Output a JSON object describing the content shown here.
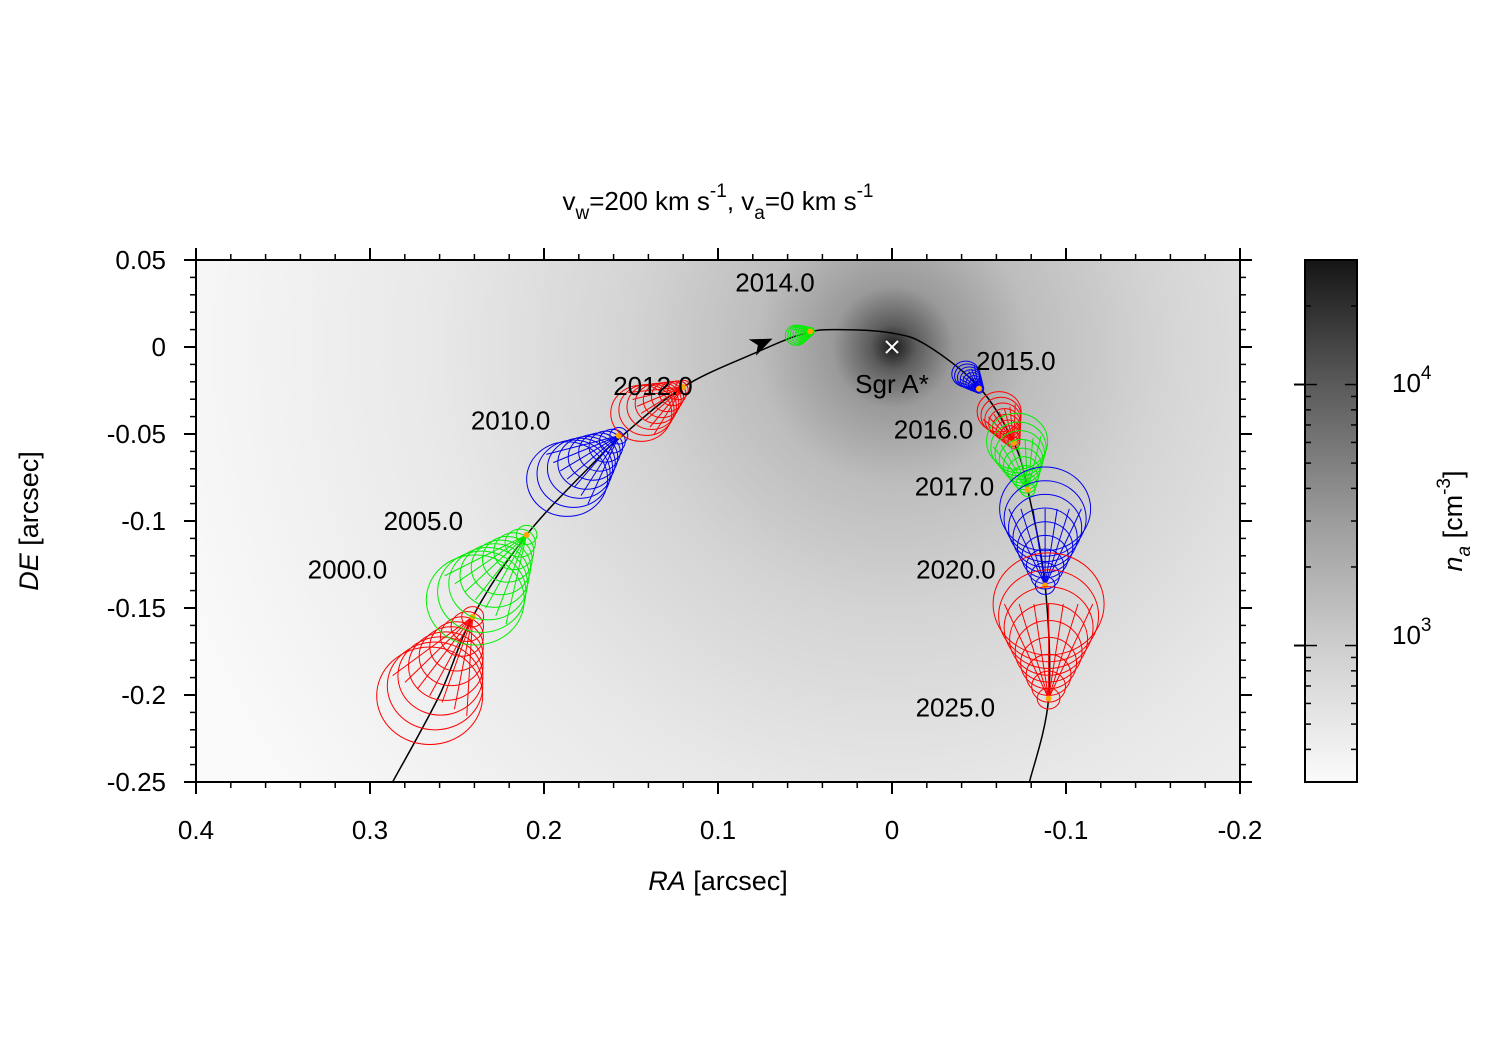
{
  "title": {
    "v": "v",
    "sub_w": "w",
    "eq200": "=200 km s",
    "exp1": "-1",
    "sep": ", v",
    "sub_a": "a",
    "eq0": "=0 km s",
    "exp2": "-1"
  },
  "chart_data": {
    "type": "scatter",
    "xaxis": {
      "label_italic": "RA",
      "label_rest": " [arcsec]",
      "lim": [
        0.4,
        -0.2
      ],
      "ticks": [
        0.4,
        0.3,
        0.2,
        0.1,
        0,
        -0.1,
        -0.2
      ],
      "tick_labels": [
        "0.4",
        "0.3",
        "0.2",
        "0.1",
        "0",
        "-0.1",
        "-0.2"
      ]
    },
    "yaxis": {
      "label_italic": "DE",
      "label_rest": " [arcsec]",
      "lim": [
        -0.25,
        0.05
      ],
      "ticks": [
        0.05,
        0,
        -0.05,
        -0.1,
        -0.15,
        -0.2,
        -0.25
      ],
      "tick_labels": [
        "0.05",
        "0",
        "-0.05",
        "-0.1",
        "-0.15",
        "-0.2",
        "-0.25"
      ]
    },
    "colorbar": {
      "label_italic": "n",
      "label_sub": "a",
      "label_rest": " [cm",
      "label_exp": "-3",
      "label_close": "]",
      "scale": "log",
      "range": [
        300,
        30000
      ],
      "tick_labels": [
        {
          "base": "10",
          "exp": "4",
          "value": 10000
        },
        {
          "base": "10",
          "exp": "3",
          "value": 1000
        }
      ]
    },
    "center": {
      "label": "Sgr A*",
      "x": 0,
      "y": 0
    },
    "orbit": [
      [
        0.287,
        -0.25
      ],
      [
        0.26,
        -0.2
      ],
      [
        0.241,
        -0.155
      ],
      [
        0.21,
        -0.108
      ],
      [
        0.17,
        -0.065
      ],
      [
        0.155,
        -0.051
      ],
      [
        0.12,
        -0.023
      ],
      [
        0.08,
        -0.004
      ],
      [
        0.05,
        0.008
      ],
      [
        0.03,
        0.01
      ],
      [
        0.0,
        0.008
      ],
      [
        -0.02,
        0.001
      ],
      [
        -0.05,
        -0.023
      ],
      [
        -0.07,
        -0.055
      ],
      [
        -0.078,
        -0.082
      ],
      [
        -0.088,
        -0.137
      ],
      [
        -0.09,
        -0.202
      ],
      [
        -0.079,
        -0.25
      ]
    ],
    "direction_arrow": {
      "x": 0.075,
      "y": 0.002
    },
    "epochs": [
      {
        "label": "2000.0",
        "color": "#ff0000",
        "x": 0.241,
        "y": -0.155
      },
      {
        "label": "2005.0",
        "color": "#00ee00",
        "x": 0.21,
        "y": -0.108
      },
      {
        "label": "2010.0",
        "color": "#0000ee",
        "x": 0.157,
        "y": -0.051
      },
      {
        "label": "2012.0",
        "color": "#ff0000",
        "x": 0.12,
        "y": -0.023
      },
      {
        "label": "2014.0",
        "color": "#00ee00",
        "x": 0.047,
        "y": 0.009
      },
      {
        "label": "2015.0",
        "color": "#0000ee",
        "x": -0.05,
        "y": -0.024
      },
      {
        "label": "2016.0",
        "color": "#ff0000",
        "x": -0.07,
        "y": -0.055
      },
      {
        "label": "2017.0",
        "color": "#00ee00",
        "x": -0.078,
        "y": -0.082
      },
      {
        "label": "2020.0",
        "color": "#0000ee",
        "x": -0.088,
        "y": -0.137
      },
      {
        "label": "2025.0",
        "color": "#ff0000",
        "x": -0.09,
        "y": -0.202
      }
    ],
    "marker_color": "#ffa500"
  }
}
